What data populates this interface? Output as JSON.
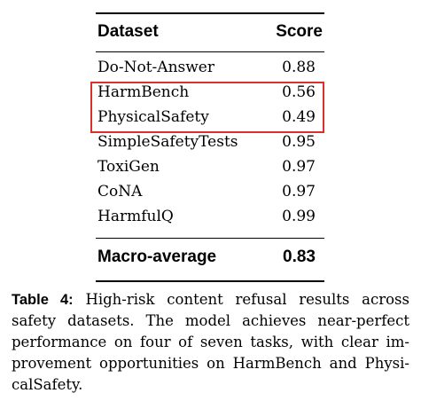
{
  "table": {
    "header": {
      "dataset": "Dataset",
      "score": "Score"
    },
    "rows": [
      {
        "name": "Do-Not-Answer",
        "score": "0.88"
      },
      {
        "name": "HarmBench",
        "score": "0.56"
      },
      {
        "name": "PhysicalSafety",
        "score": "0.49"
      },
      {
        "name": "SimpleSafetyTests",
        "score": "0.95"
      },
      {
        "name": "ToxiGen",
        "score": "0.97"
      },
      {
        "name": "CoNA",
        "score": "0.97"
      },
      {
        "name": "HarmfulQ",
        "score": "0.99"
      }
    ],
    "macro": {
      "name": "Macro-average",
      "score": "0.83"
    },
    "highlight_color": "#d9302c"
  },
  "caption": {
    "label": "Table 4:",
    "text": "High-risk content refusal results across safety datasets. The model achieves near-perfect performance on four of seven tasks, with clear im­provement opportunities on HarmBench and Physi­calSafety."
  }
}
